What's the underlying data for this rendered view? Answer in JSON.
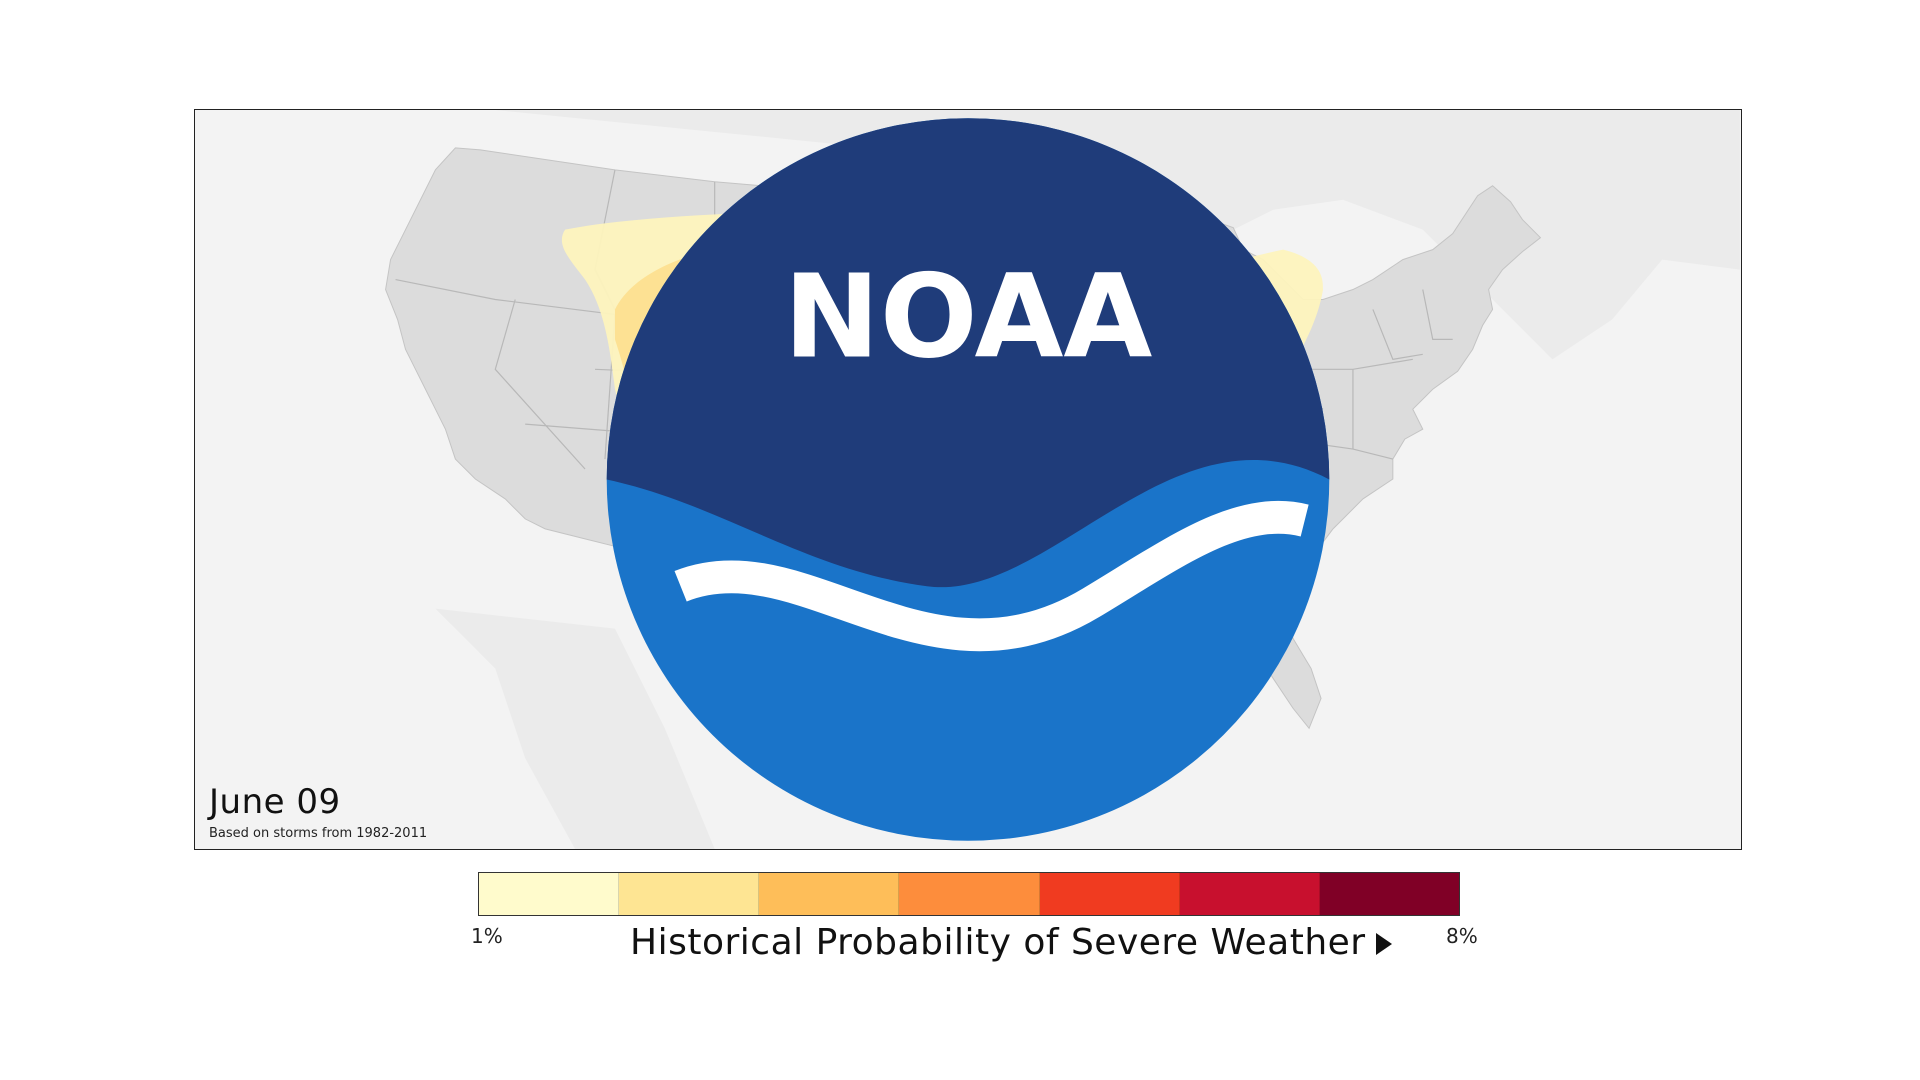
{
  "map": {
    "date_label": "June 09",
    "based_on": "Based on storms from 1982-2011",
    "logo": {
      "text": "NOAA",
      "icon": "noaa-logo-icon"
    },
    "colors": {
      "background": "#f3f3f3",
      "land": "#dcdcdc",
      "state_borders": "#b9b9b9",
      "ocean_land_faint": "#ebebeb"
    }
  },
  "legend": {
    "title": "Historical Probability of Severe Weather",
    "min_label": "1%",
    "max_label": "8%",
    "colors": [
      "#fffbcc",
      "#fee593",
      "#febe59",
      "#fd8d3c",
      "#f03b20",
      "#c8102e",
      "#800026"
    ]
  }
}
